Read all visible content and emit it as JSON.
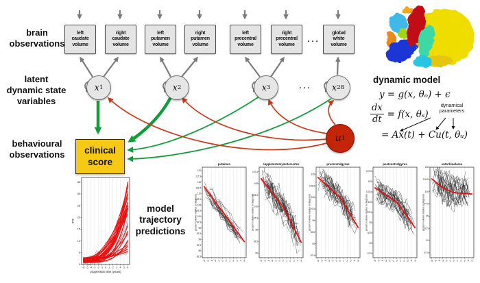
{
  "row_labels": {
    "brain": "brain\nobservations",
    "latent": "latent\ndynamic state\nvariables",
    "behavioural": "behavioural\nobservations",
    "predictions": "model\ntrajectory\npredictions"
  },
  "ellipsis": ". . .",
  "brain_boxes": [
    "left\ncaudate\nvolume",
    "right\ncaudate\nvolume",
    "left\nputamen\nvolume",
    "right\nputamen\nvolume",
    "left\nprecentral\nvolume",
    "right\nprecentral\nvolume",
    "global\nwhite\nvolume"
  ],
  "nodes": [
    {
      "base": "x",
      "sub": "1"
    },
    {
      "base": "x",
      "sub": "2"
    },
    {
      "base": "x",
      "sub": "3"
    },
    {
      "base": "x",
      "sub": "28"
    }
  ],
  "input_node": {
    "base": "u",
    "sub": "1"
  },
  "clinical_score": "clinical\nscore",
  "dynamic_model": {
    "title": "dynamic model",
    "eq1": "y = g(x, θₒ) + ϵ",
    "frac_num": "dx",
    "frac_den": "dt",
    "eq2_rhs": "= f(x, θₛ)",
    "annotation": "dynamical\nparameters",
    "eq3": "= Ax(t) + Cu(t, θᵤ)"
  },
  "colors": {
    "background": "#ffffff",
    "arrow_gray": "#7b7b7b",
    "arrow_green": "#119d3a",
    "arrow_red": "#c93a1b",
    "node_fill": "#e6e6e6",
    "node_border": "#6e6e6e",
    "box_fill": "#e4e4e4",
    "box_border": "#4a4a4a",
    "input_node_fill": "#c32506",
    "clinical_fill": "#f6c915",
    "trajectory_red": "#e81010",
    "trajectory_gray": "#6a6a6a",
    "trajectory_black": "#2a2a2a"
  },
  "chart_data": [
    {
      "id": "clinical_trajectories",
      "type": "line",
      "title": "",
      "xlabel": "progression time (years)",
      "ylabel": "tms",
      "xlim": [
        -6.5,
        6.5
      ],
      "ylim": [
        0,
        37
      ],
      "xticks": [
        -6,
        -5,
        -4,
        -3,
        -2,
        -1,
        0,
        1,
        2,
        3,
        4,
        5,
        6
      ],
      "yticks": [
        0,
        5,
        10,
        15,
        20,
        25,
        30,
        35
      ],
      "grid": "vertical",
      "kind": "exp_increase",
      "gray_series_count": 15,
      "red_series_count": 26,
      "description": "observed clinical-score trajectories (gray) and model trajectory predictions (red) rising from ~2 to 5-35 across progression time -6..6 years"
    },
    {
      "id": "putamen",
      "type": "line",
      "title": "putamen",
      "xlabel": "",
      "ylabel": "percent volume relative to diagnosis",
      "xlim": [
        -6.5,
        5.5
      ],
      "ylim": [
        82,
        121.5
      ],
      "xticks": [
        -6,
        -5,
        -4,
        -3,
        -2,
        -1,
        0,
        1,
        2,
        3,
        4,
        5
      ],
      "ytick_step": 2.5,
      "grid": "vertical",
      "kind": "decline",
      "black_series_count": 20,
      "spread": 4,
      "noise": 1.5,
      "red_trend_points": [
        [
          -6,
          113
        ],
        [
          0,
          100
        ],
        [
          5,
          89
        ]
      ],
      "description": "individual percent-volume curves (black) declining; red model trend from ~113% at -6y to ~89% at +5y"
    },
    {
      "id": "supplementarymotorcortex",
      "type": "line",
      "title": "supplementarymotorcortex",
      "xlabel": "",
      "ylabel": "percent volume relative to diagnosis",
      "xlim": [
        -6.5,
        5.5
      ],
      "ylim": [
        89,
        108.5
      ],
      "xticks": [
        -6,
        -5,
        -4,
        -3,
        -2,
        -1,
        0,
        1,
        2,
        3,
        4,
        5
      ],
      "ytick_step": 2.5,
      "grid": "vertical",
      "kind": "decline",
      "black_series_count": 24,
      "spread": 2.6,
      "noise": 2.1,
      "red_trend_points": [
        [
          -6,
          106
        ],
        [
          0,
          100
        ],
        [
          5,
          92.3
        ]
      ],
      "description": "noisy individual curves; red trend ~106% to ~92% across -6..5 years"
    },
    {
      "id": "precentralgyrus",
      "type": "line",
      "title": "precentralgyrus",
      "xlabel": "",
      "ylabel": "percent volume relative to diagnosis",
      "xlim": [
        -6.5,
        5.5
      ],
      "ylim": [
        87,
        106.5
      ],
      "xticks": [
        -6,
        -5,
        -4,
        -3,
        -2,
        -1,
        0,
        1,
        2,
        3,
        4,
        5
      ],
      "ytick_step": 2.5,
      "grid": "vertical",
      "kind": "decline",
      "black_series_count": 24,
      "spread": 2.4,
      "noise": 1.8,
      "red_trend_points": [
        [
          -6,
          104.3
        ],
        [
          0,
          100
        ],
        [
          5,
          93.5
        ]
      ],
      "description": "red trend ~104% to ~93.5%"
    },
    {
      "id": "postcentralgyrus",
      "type": "line",
      "title": "postcentralgyrus",
      "xlabel": "",
      "ylabel": "percent volume relative to diagnosis",
      "xlim": [
        -6.5,
        5.5
      ],
      "ylim": [
        86.5,
        108.5
      ],
      "xticks": [
        -6,
        -5,
        -4,
        -3,
        -2,
        -1,
        0,
        1,
        2,
        3,
        4,
        5
      ],
      "ytick_step": 2.5,
      "grid": "vertical",
      "kind": "decline",
      "black_series_count": 24,
      "spread": 2.4,
      "noise": 1.8,
      "red_trend_points": [
        [
          -6,
          103.5
        ],
        [
          0,
          100
        ],
        [
          5,
          93.8
        ]
      ],
      "description": "red trend ~103.5% to ~94%"
    },
    {
      "id": "entorhinalarea",
      "type": "line",
      "title": "entorhinalarea",
      "xlabel": "",
      "ylabel": "percent volume relative to diagnosis",
      "xlim": [
        -6.5,
        5.5
      ],
      "ylim": [
        86.5,
        105
      ],
      "xticks": [
        -6,
        -5,
        -4,
        -3,
        -2,
        -1,
        0,
        1,
        2,
        3,
        4,
        5
      ],
      "ytick_step": 2.5,
      "grid": "vertical",
      "kind": "decline",
      "black_series_count": 24,
      "spread": 2.8,
      "noise": 2.1,
      "red_trend_points": [
        [
          -6,
          102.6
        ],
        [
          -3,
          100.8
        ],
        [
          0,
          99.8
        ],
        [
          5,
          99.5
        ]
      ],
      "description": "red trend declines from ~102.6% then flattens near ~99.5%"
    }
  ]
}
